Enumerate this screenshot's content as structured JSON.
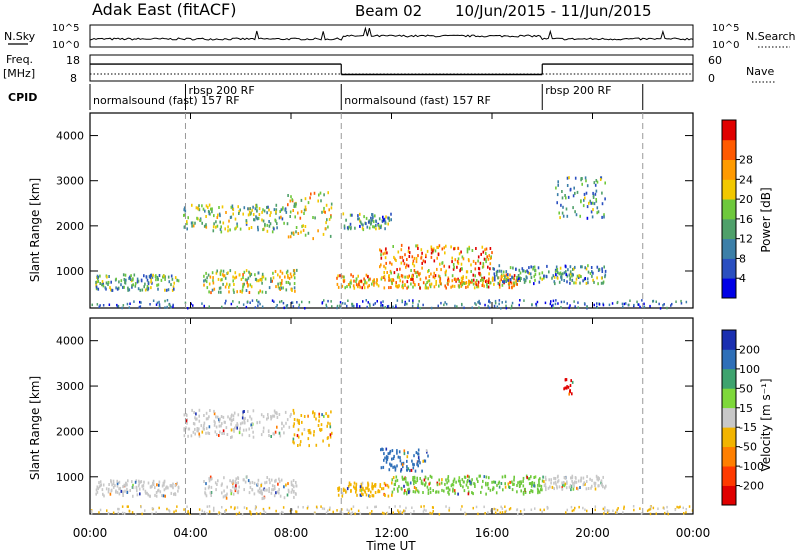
{
  "header": {
    "station": "Adak East (fitACF)",
    "beam": "Beam 02",
    "date_range": "10/Jun/2015 - 11/Jun/2015"
  },
  "status_panels": {
    "nsky_label": "N.Sky",
    "nsky_ticks": [
      "10^5",
      "10^0"
    ],
    "nsearch_label": "N.Search",
    "nsearch_ticks": [
      "10^5",
      "10^0"
    ],
    "freq_label": "Freq.",
    "freq_unit": "[MHz]",
    "freq_ticks": [
      "18",
      "8"
    ],
    "nave_label": "Nave",
    "nave_ticks": [
      "60",
      "0"
    ],
    "cpid_label": "CPID",
    "cpid_segments": [
      {
        "label": "normalsound (fast) 157 RF",
        "start_h": 0,
        "end_h": 3.8
      },
      {
        "label": "rbsp 200 RF",
        "start_h": 3.8,
        "end_h": 10
      },
      {
        "label": "normalsound (fast) 157 RF",
        "start_h": 10,
        "end_h": 18
      },
      {
        "label": "rbsp 200 RF",
        "start_h": 18,
        "end_h": 22
      }
    ],
    "freq_series": [
      {
        "start_h": 0,
        "end_h": 10,
        "mhz": 14.5
      },
      {
        "start_h": 10,
        "end_h": 18,
        "mhz": 10.5
      },
      {
        "start_h": 18,
        "end_h": 24,
        "mhz": 14.5
      }
    ]
  },
  "chart_data": [
    {
      "type": "heatmap",
      "name": "power",
      "ylabel": "Slant Range [km]",
      "ylim": [
        180,
        4500
      ],
      "yticks": [
        "1000",
        "2000",
        "3000",
        "4000"
      ],
      "xlim": [
        0,
        24
      ],
      "colorbar": {
        "label": "Power [dB]",
        "ticks": [
          "4",
          "8",
          "12",
          "16",
          "20",
          "24",
          "28"
        ],
        "colors": [
          "#0000e6",
          "#2a4fc0",
          "#3c7fa8",
          "#4fa06a",
          "#6ec83c",
          "#f2c800",
          "#ff9a00",
          "#ff5a00",
          "#e00000"
        ]
      },
      "echo_regions": [
        {
          "t0": 0.2,
          "t1": 3.5,
          "r0": 600,
          "r1": 950,
          "level": 0.4
        },
        {
          "t0": 4.5,
          "t1": 8.2,
          "r0": 550,
          "r1": 1050,
          "level": 0.55
        },
        {
          "t0": 3.7,
          "t1": 7.8,
          "r0": 1900,
          "r1": 2500,
          "level": 0.45
        },
        {
          "t0": 7.8,
          "t1": 9.6,
          "r0": 1700,
          "r1": 2800,
          "level": 0.6
        },
        {
          "t0": 9.8,
          "t1": 17.0,
          "r0": 650,
          "r1": 950,
          "level": 0.7
        },
        {
          "t0": 11.5,
          "t1": 16.0,
          "r0": 950,
          "r1": 1600,
          "level": 0.75
        },
        {
          "t0": 16.0,
          "t1": 20.5,
          "r0": 750,
          "r1": 1150,
          "level": 0.35
        },
        {
          "t0": 10.0,
          "t1": 12.0,
          "r0": 1950,
          "r1": 2300,
          "level": 0.35
        },
        {
          "t0": 18.5,
          "t1": 20.5,
          "r0": 2200,
          "r1": 3100,
          "level": 0.35
        }
      ]
    },
    {
      "type": "heatmap",
      "name": "velocity",
      "ylabel": "Slant Range [km]",
      "ylim": [
        180,
        4500
      ],
      "yticks": [
        "1000",
        "2000",
        "3000",
        "4000"
      ],
      "xlim": [
        0,
        24
      ],
      "xlabel": "Time UT",
      "xticks": [
        "00:00",
        "04:00",
        "08:00",
        "12:00",
        "16:00",
        "20:00",
        "00:00"
      ],
      "colorbar": {
        "label": "Velocity [m s⁻¹]",
        "ticks": [
          "200",
          "100",
          "50",
          "15",
          "-15",
          "-50",
          "-100",
          "-200"
        ],
        "colors": [
          "#1a2fb0",
          "#2e6fb8",
          "#3ea36e",
          "#7ed83a",
          "#c8c8c8",
          "#f2b400",
          "#ff7f00",
          "#ff3a00",
          "#e00000"
        ]
      },
      "echo_regions": [
        {
          "t0": 0.2,
          "t1": 3.5,
          "r0": 600,
          "r1": 950,
          "class": "gray"
        },
        {
          "t0": 4.5,
          "t1": 8.2,
          "r0": 550,
          "r1": 1050,
          "class": "gray"
        },
        {
          "t0": 3.7,
          "t1": 8.0,
          "r0": 1900,
          "r1": 2500,
          "class": "gray"
        },
        {
          "t0": 8.0,
          "t1": 9.6,
          "r0": 1700,
          "r1": 2500,
          "class": "orange"
        },
        {
          "t0": 9.8,
          "t1": 12.0,
          "r0": 600,
          "r1": 900,
          "class": "orange"
        },
        {
          "t0": 12.0,
          "t1": 18.0,
          "r0": 650,
          "r1": 1050,
          "class": "green"
        },
        {
          "t0": 11.5,
          "t1": 13.5,
          "r0": 1150,
          "r1": 1650,
          "class": "blue"
        },
        {
          "t0": 18.0,
          "t1": 20.5,
          "r0": 750,
          "r1": 1050,
          "class": "gray"
        },
        {
          "t0": 18.8,
          "t1": 19.2,
          "r0": 2850,
          "r1": 3200,
          "class": "red"
        }
      ]
    }
  ]
}
